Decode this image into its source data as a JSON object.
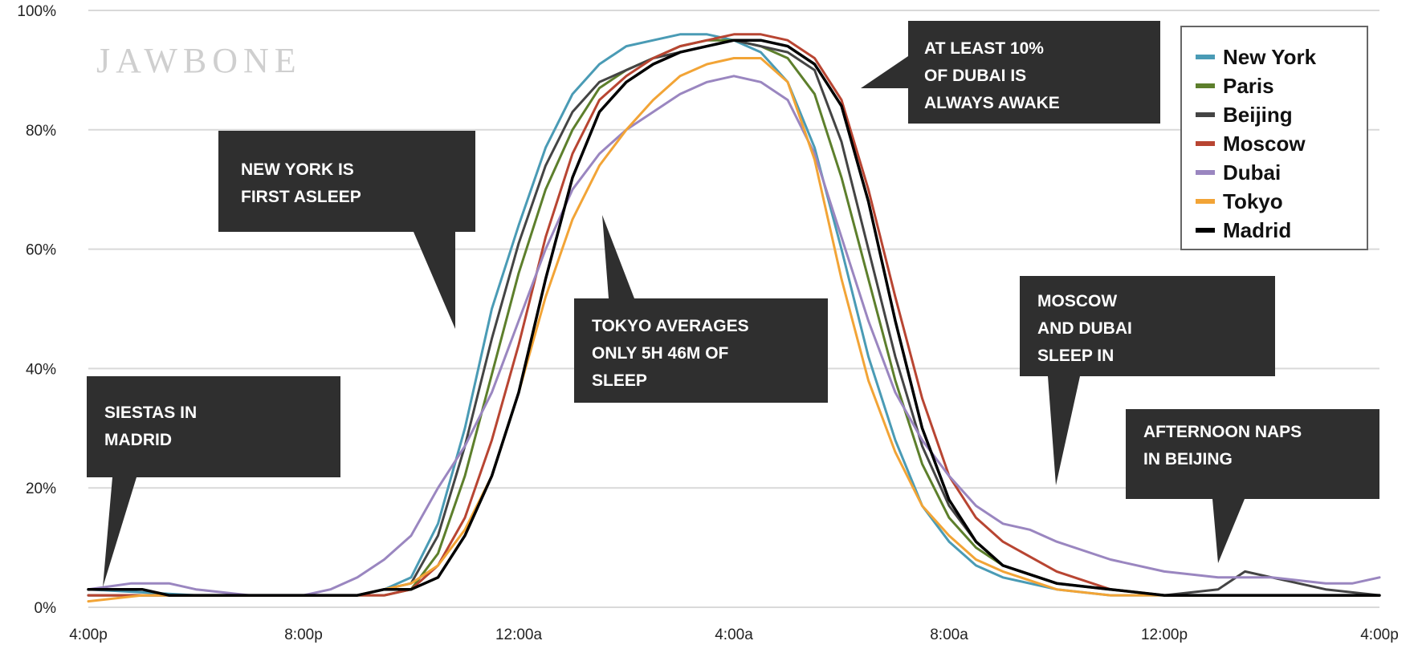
{
  "brand": "JAWBONE",
  "chart_data": {
    "type": "line",
    "title": "",
    "xlabel": "",
    "ylabel": "",
    "x_ticks": [
      "4:00p",
      "8:00p",
      "12:00a",
      "4:00a",
      "8:00a",
      "12:00p",
      "4:00p"
    ],
    "x_range_hours": [
      16,
      40
    ],
    "ylim": [
      0,
      100
    ],
    "y_ticks": [
      "0%",
      "20%",
      "40%",
      "60%",
      "80%",
      "100%"
    ],
    "grid": "horizontal",
    "legend_position": "top-right",
    "series": [
      {
        "name": "New York",
        "color": "#4a9bb5",
        "points": [
          [
            16,
            3
          ],
          [
            18,
            2
          ],
          [
            19,
            2
          ],
          [
            20,
            2
          ],
          [
            21,
            2
          ],
          [
            21.5,
            3
          ],
          [
            22,
            5
          ],
          [
            22.5,
            14
          ],
          [
            23,
            30
          ],
          [
            23.5,
            50
          ],
          [
            24,
            64
          ],
          [
            24.5,
            77
          ],
          [
            25,
            86
          ],
          [
            25.5,
            91
          ],
          [
            26,
            94
          ],
          [
            26.5,
            95
          ],
          [
            27,
            96
          ],
          [
            27.5,
            96
          ],
          [
            28,
            95
          ],
          [
            28.5,
            93
          ],
          [
            29,
            88
          ],
          [
            29.5,
            77
          ],
          [
            30,
            60
          ],
          [
            30.5,
            42
          ],
          [
            31,
            28
          ],
          [
            31.5,
            17
          ],
          [
            32,
            11
          ],
          [
            32.5,
            7
          ],
          [
            33,
            5
          ],
          [
            34,
            3
          ],
          [
            35,
            2
          ],
          [
            36,
            2
          ],
          [
            38,
            2
          ],
          [
            40,
            2
          ]
        ]
      },
      {
        "name": "Paris",
        "color": "#5d7f2c",
        "points": [
          [
            16,
            2
          ],
          [
            18,
            2
          ],
          [
            20,
            2
          ],
          [
            21,
            2
          ],
          [
            21.5,
            2
          ],
          [
            22,
            3
          ],
          [
            22.5,
            9
          ],
          [
            23,
            22
          ],
          [
            23.5,
            39
          ],
          [
            24,
            56
          ],
          [
            24.5,
            70
          ],
          [
            25,
            80
          ],
          [
            25.5,
            87
          ],
          [
            26,
            90
          ],
          [
            26.5,
            92
          ],
          [
            27,
            94
          ],
          [
            27.5,
            95
          ],
          [
            28,
            95
          ],
          [
            28.5,
            94
          ],
          [
            29,
            92
          ],
          [
            29.5,
            86
          ],
          [
            30,
            72
          ],
          [
            30.5,
            55
          ],
          [
            31,
            38
          ],
          [
            31.5,
            24
          ],
          [
            32,
            15
          ],
          [
            32.5,
            10
          ],
          [
            33,
            7
          ],
          [
            34,
            4
          ],
          [
            35,
            3
          ],
          [
            36,
            2
          ],
          [
            38,
            2
          ],
          [
            40,
            2
          ]
        ]
      },
      {
        "name": "Beijing",
        "color": "#444444",
        "points": [
          [
            16,
            2
          ],
          [
            18,
            2
          ],
          [
            20,
            2
          ],
          [
            21,
            2
          ],
          [
            21.5,
            3
          ],
          [
            22,
            4
          ],
          [
            22.5,
            12
          ],
          [
            23,
            27
          ],
          [
            23.5,
            45
          ],
          [
            24,
            61
          ],
          [
            24.5,
            74
          ],
          [
            25,
            83
          ],
          [
            25.5,
            88
          ],
          [
            26,
            90
          ],
          [
            26.5,
            92
          ],
          [
            27,
            93
          ],
          [
            27.5,
            94
          ],
          [
            28,
            95
          ],
          [
            28.5,
            94
          ],
          [
            29,
            93
          ],
          [
            29.5,
            90
          ],
          [
            30,
            78
          ],
          [
            30.5,
            60
          ],
          [
            31,
            42
          ],
          [
            31.5,
            27
          ],
          [
            32,
            17
          ],
          [
            32.5,
            11
          ],
          [
            33,
            7
          ],
          [
            34,
            4
          ],
          [
            35,
            3
          ],
          [
            36,
            2
          ],
          [
            37,
            3
          ],
          [
            37.5,
            6
          ],
          [
            38,
            5
          ],
          [
            39,
            3
          ],
          [
            40,
            2
          ]
        ]
      },
      {
        "name": "Moscow",
        "color": "#b84532",
        "points": [
          [
            16,
            2
          ],
          [
            18,
            2
          ],
          [
            20,
            2
          ],
          [
            21,
            2
          ],
          [
            21.5,
            2
          ],
          [
            22,
            3
          ],
          [
            22.5,
            7
          ],
          [
            23,
            15
          ],
          [
            23.5,
            28
          ],
          [
            24,
            44
          ],
          [
            24.5,
            62
          ],
          [
            25,
            76
          ],
          [
            25.5,
            85
          ],
          [
            26,
            89
          ],
          [
            26.5,
            92
          ],
          [
            27,
            94
          ],
          [
            27.5,
            95
          ],
          [
            28,
            96
          ],
          [
            28.5,
            96
          ],
          [
            29,
            95
          ],
          [
            29.5,
            92
          ],
          [
            30,
            85
          ],
          [
            30.5,
            70
          ],
          [
            31,
            52
          ],
          [
            31.5,
            35
          ],
          [
            32,
            22
          ],
          [
            32.5,
            15
          ],
          [
            33,
            11
          ],
          [
            34,
            6
          ],
          [
            35,
            3
          ],
          [
            36,
            2
          ],
          [
            38,
            2
          ],
          [
            40,
            2
          ]
        ]
      },
      {
        "name": "Dubai",
        "color": "#9a86c0",
        "points": [
          [
            16,
            3
          ],
          [
            16.8,
            4
          ],
          [
            17.5,
            4
          ],
          [
            18,
            3
          ],
          [
            19,
            2
          ],
          [
            20,
            2
          ],
          [
            20.5,
            3
          ],
          [
            21,
            5
          ],
          [
            21.5,
            8
          ],
          [
            22,
            12
          ],
          [
            22.5,
            20
          ],
          [
            23,
            27
          ],
          [
            23.5,
            36
          ],
          [
            24,
            48
          ],
          [
            24.5,
            60
          ],
          [
            25,
            70
          ],
          [
            25.5,
            76
          ],
          [
            26,
            80
          ],
          [
            26.5,
            83
          ],
          [
            27,
            86
          ],
          [
            27.5,
            88
          ],
          [
            28,
            89
          ],
          [
            28.5,
            88
          ],
          [
            29,
            85
          ],
          [
            29.5,
            76
          ],
          [
            30,
            62
          ],
          [
            30.5,
            48
          ],
          [
            31,
            36
          ],
          [
            31.5,
            28
          ],
          [
            32,
            22
          ],
          [
            32.5,
            17
          ],
          [
            33,
            14
          ],
          [
            33.5,
            13
          ],
          [
            34,
            11
          ],
          [
            35,
            8
          ],
          [
            36,
            6
          ],
          [
            37,
            5
          ],
          [
            38,
            5
          ],
          [
            39,
            4
          ],
          [
            39.5,
            4
          ],
          [
            40,
            5
          ]
        ]
      },
      {
        "name": "Tokyo",
        "color": "#f2a436",
        "points": [
          [
            16,
            1
          ],
          [
            17,
            2
          ],
          [
            18,
            2
          ],
          [
            20,
            2
          ],
          [
            21,
            2
          ],
          [
            21.5,
            3
          ],
          [
            22,
            4
          ],
          [
            22.5,
            7
          ],
          [
            23,
            13
          ],
          [
            23.5,
            22
          ],
          [
            24,
            36
          ],
          [
            24.5,
            52
          ],
          [
            25,
            65
          ],
          [
            25.5,
            74
          ],
          [
            26,
            80
          ],
          [
            26.5,
            85
          ],
          [
            27,
            89
          ],
          [
            27.5,
            91
          ],
          [
            28,
            92
          ],
          [
            28.5,
            92
          ],
          [
            29,
            88
          ],
          [
            29.5,
            75
          ],
          [
            30,
            55
          ],
          [
            30.5,
            38
          ],
          [
            31,
            26
          ],
          [
            31.5,
            17
          ],
          [
            32,
            12
          ],
          [
            32.5,
            8
          ],
          [
            33,
            6
          ],
          [
            34,
            3
          ],
          [
            35,
            2
          ],
          [
            36,
            2
          ],
          [
            38,
            2
          ],
          [
            40,
            2
          ]
        ]
      },
      {
        "name": "Madrid",
        "color": "#000000",
        "points": [
          [
            16,
            3
          ],
          [
            17,
            3
          ],
          [
            17.5,
            2
          ],
          [
            18,
            2
          ],
          [
            20,
            2
          ],
          [
            21,
            2
          ],
          [
            21.5,
            3
          ],
          [
            22,
            3
          ],
          [
            22.5,
            5
          ],
          [
            23,
            12
          ],
          [
            23.5,
            22
          ],
          [
            24,
            36
          ],
          [
            24.5,
            55
          ],
          [
            25,
            72
          ],
          [
            25.5,
            83
          ],
          [
            26,
            88
          ],
          [
            26.5,
            91
          ],
          [
            27,
            93
          ],
          [
            27.5,
            94
          ],
          [
            28,
            95
          ],
          [
            28.5,
            95
          ],
          [
            29,
            94
          ],
          [
            29.5,
            91
          ],
          [
            30,
            84
          ],
          [
            30.5,
            68
          ],
          [
            31,
            48
          ],
          [
            31.5,
            30
          ],
          [
            32,
            18
          ],
          [
            32.5,
            11
          ],
          [
            33,
            7
          ],
          [
            34,
            4
          ],
          [
            35,
            3
          ],
          [
            36,
            2
          ],
          [
            38,
            2
          ],
          [
            40,
            2
          ]
        ]
      }
    ],
    "annotations": [
      {
        "lines": [
          "NEW YORK IS",
          "FIRST ASLEEP"
        ]
      },
      {
        "lines": [
          "AT LEAST 10%",
          "OF DUBAI IS",
          "ALWAYS AWAKE"
        ]
      },
      {
        "lines": [
          "TOKYO AVERAGES",
          "ONLY 5H 46M OF",
          "SLEEP"
        ]
      },
      {
        "lines": [
          "MOSCOW",
          "AND DUBAI",
          "SLEEP IN"
        ]
      },
      {
        "lines": [
          "SIESTAS IN",
          "MADRID"
        ]
      },
      {
        "lines": [
          "AFTERNOON NAPS",
          "IN BEIJING"
        ]
      }
    ]
  }
}
